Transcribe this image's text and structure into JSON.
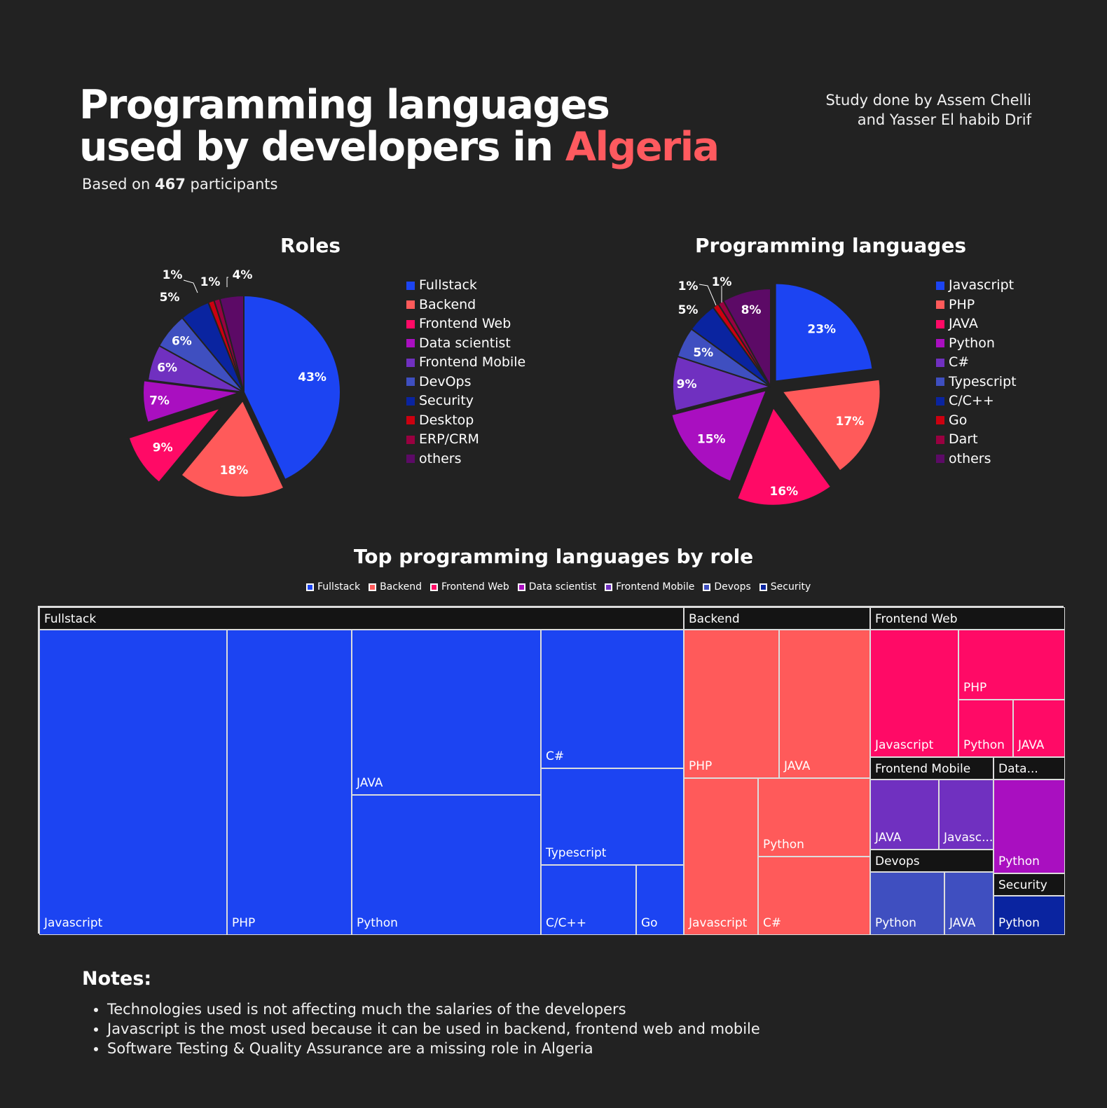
{
  "header": {
    "title_line1": "Programming languages",
    "title_line2_prefix": "used by developers in ",
    "title_accent": "Algeria",
    "subtitle_prefix": "Based on ",
    "subtitle_count": "467",
    "subtitle_suffix": " participants",
    "credit_line1": "Study done by Assem Chelli",
    "credit_line2": "and Yasser El habib Drif",
    "accent_color": "#ff5a5f"
  },
  "chart_data": [
    {
      "type": "pie",
      "title": "Roles",
      "unit": "%",
      "slices": [
        {
          "label": "Fullstack",
          "value": 43,
          "color": "#1c44f2"
        },
        {
          "label": "Backend",
          "value": 18,
          "color": "#ff5a5a"
        },
        {
          "label": "Frontend Web",
          "value": 9,
          "color": "#ff0a66"
        },
        {
          "label": "Data scientist",
          "value": 7,
          "color": "#a90fc0"
        },
        {
          "label": "Frontend Mobile",
          "value": 6,
          "color": "#7030c0"
        },
        {
          "label": "DevOps",
          "value": 6,
          "color": "#3f4fc0"
        },
        {
          "label": "Security",
          "value": 5,
          "color": "#0a24a0"
        },
        {
          "label": "Desktop",
          "value": 1,
          "color": "#cc0010"
        },
        {
          "label": "ERP/CRM",
          "value": 1,
          "color": "#990040"
        },
        {
          "label": "others",
          "value": 4,
          "color": "#5c0a66"
        }
      ]
    },
    {
      "type": "pie",
      "title": "Programming languages",
      "unit": "%",
      "slices": [
        {
          "label": "Javascript",
          "value": 23,
          "color": "#1c44f2"
        },
        {
          "label": "PHP",
          "value": 17,
          "color": "#ff5a5a"
        },
        {
          "label": "JAVA",
          "value": 16,
          "color": "#ff0a66"
        },
        {
          "label": "Python",
          "value": 15,
          "color": "#a90fc0"
        },
        {
          "label": "C#",
          "value": 9,
          "color": "#7030c0"
        },
        {
          "label": "Typescript",
          "value": 5,
          "color": "#3f4fc0"
        },
        {
          "label": "C/C++",
          "value": 5,
          "color": "#0a24a0"
        },
        {
          "label": "Go",
          "value": 1,
          "color": "#cc0010"
        },
        {
          "label": "Dart",
          "value": 1,
          "color": "#990040"
        },
        {
          "label": "others",
          "value": 8,
          "color": "#5c0a66"
        }
      ]
    },
    {
      "type": "treemap",
      "title": "Top programming languages by role",
      "legend": [
        {
          "label": "Fullstack",
          "color": "#1c44f2"
        },
        {
          "label": "Backend",
          "color": "#ff5a5a"
        },
        {
          "label": "Frontend Web",
          "color": "#ff0a66"
        },
        {
          "label": "Data scientist",
          "color": "#a90fc0"
        },
        {
          "label": "Frontend Mobile",
          "color": "#7030c0"
        },
        {
          "label": "Devops",
          "color": "#3f4fc0"
        },
        {
          "label": "Security",
          "color": "#0a24a0"
        }
      ],
      "groups": [
        {
          "label": "Fullstack",
          "color": "#1c44f2",
          "items": [
            "Javascript",
            "PHP",
            "JAVA",
            "Python",
            "C#",
            "Typescript",
            "C/C++",
            "Go"
          ]
        },
        {
          "label": "Backend",
          "color": "#ff5a5a",
          "items": [
            "PHP",
            "JAVA",
            "Javascript",
            "Python",
            "C#"
          ]
        },
        {
          "label": "Frontend Web",
          "color": "#ff0a66",
          "items": [
            "Javascript",
            "PHP",
            "Python",
            "JAVA"
          ]
        },
        {
          "label": "Frontend Mobile",
          "color": "#7030c0",
          "items": [
            "JAVA",
            "Javasc..."
          ]
        },
        {
          "label": "Data...",
          "color": "#a90fc0",
          "items": [
            "Python"
          ]
        },
        {
          "label": "Devops",
          "color": "#3f4fc0",
          "items": [
            "Python",
            "JAVA"
          ]
        },
        {
          "label": "Security",
          "color": "#0a24a0",
          "items": [
            "Python"
          ]
        }
      ]
    }
  ],
  "notes": {
    "title": "Notes:",
    "items": [
      "Technologies used is not affecting much the salaries of the developers",
      "Javascript is the most used because it can be used in backend, frontend web and mobile",
      "Software Testing & Quality Assurance are a missing role in Algeria"
    ]
  }
}
